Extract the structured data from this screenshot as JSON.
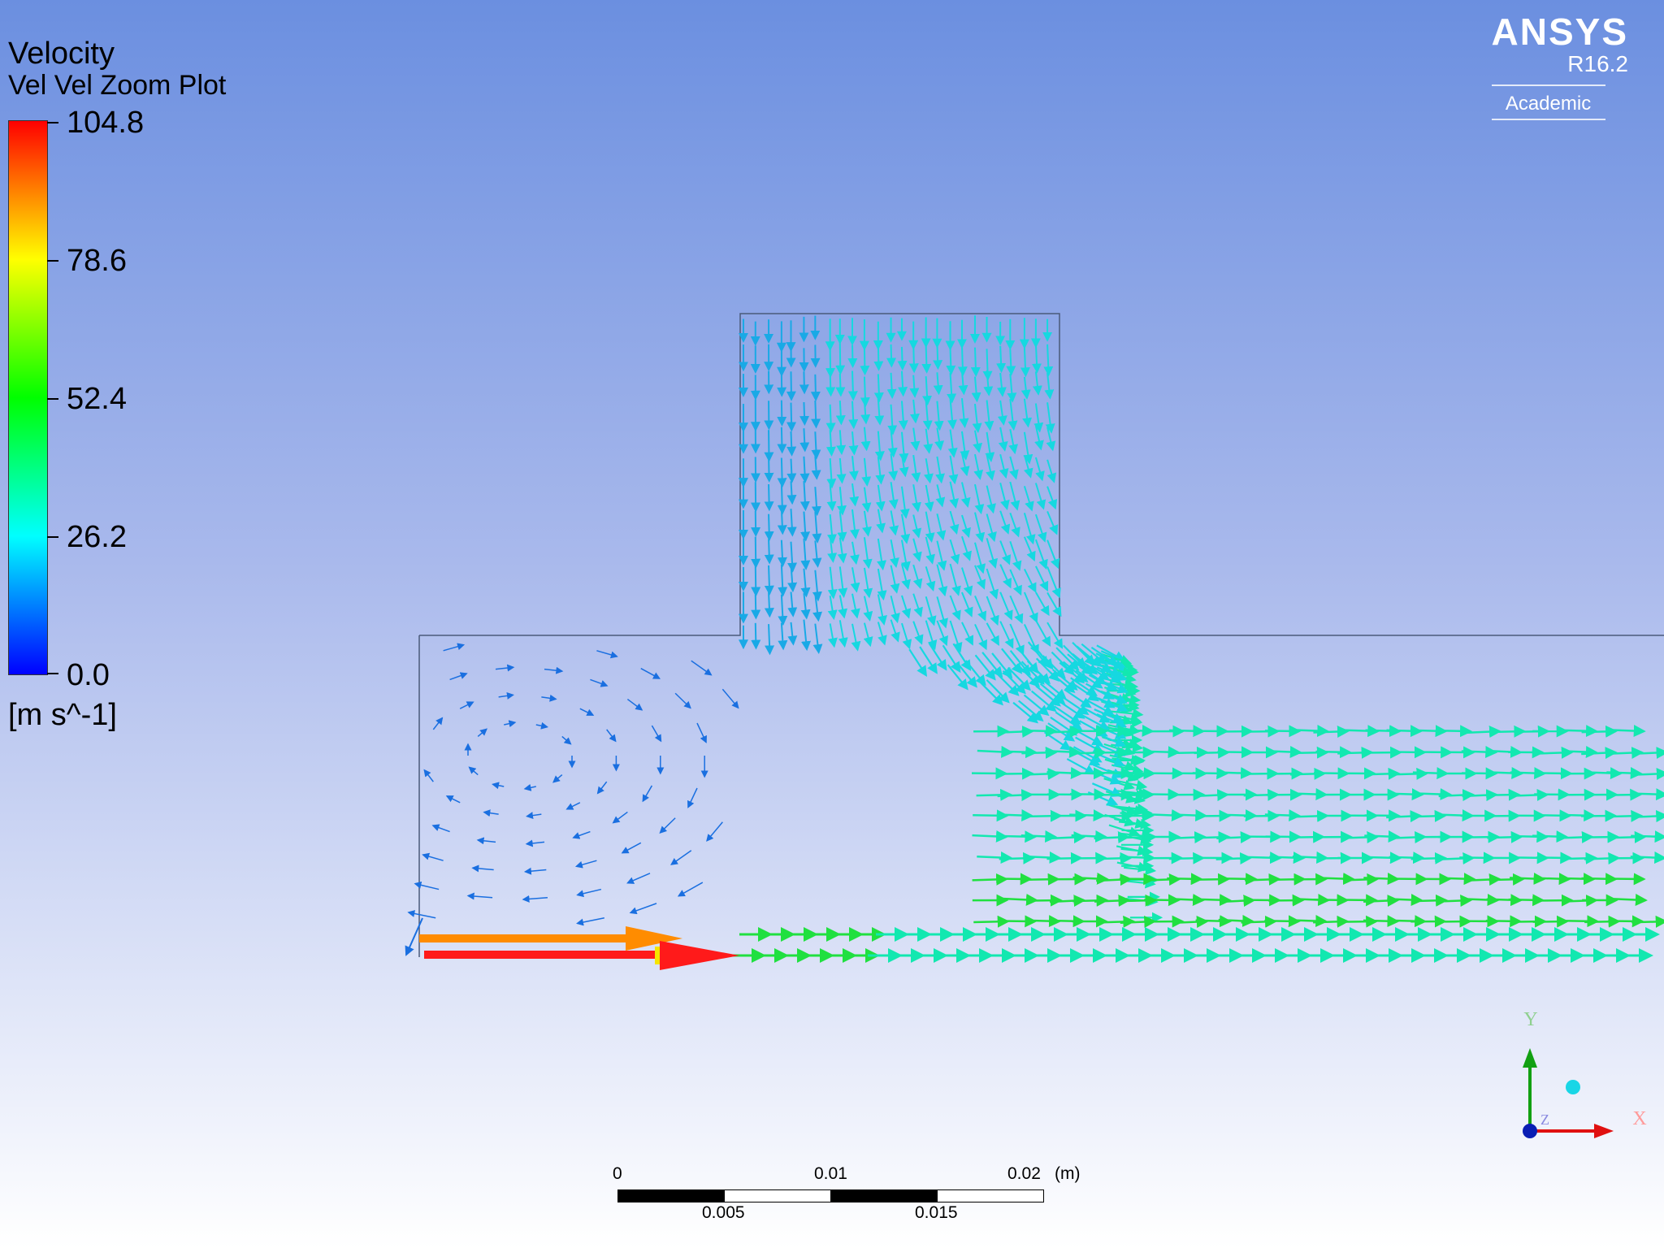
{
  "legend": {
    "title": "Velocity",
    "subtitle": "Vel Vel Zoom Plot",
    "ticks": [
      "104.8",
      "78.6",
      "52.4",
      "26.2",
      "0.0"
    ],
    "units": "[m s^-1]",
    "range": [
      0.0,
      104.8
    ]
  },
  "brand": {
    "name": "ANSYS",
    "version": "R16.2",
    "edition": "Academic"
  },
  "scale_bar": {
    "top_labels": [
      "0",
      "0.01",
      "0.02"
    ],
    "bottom_labels": [
      "0.005",
      "0.015"
    ],
    "unit": "(m)"
  },
  "axes_triad": {
    "x_label": "X",
    "y_label": "Y",
    "z_label": "Z"
  },
  "colors": {
    "background_top": "#6b8fe0",
    "background_bottom": "#ffffff",
    "geometry_outline": "#4a5a7a"
  }
}
